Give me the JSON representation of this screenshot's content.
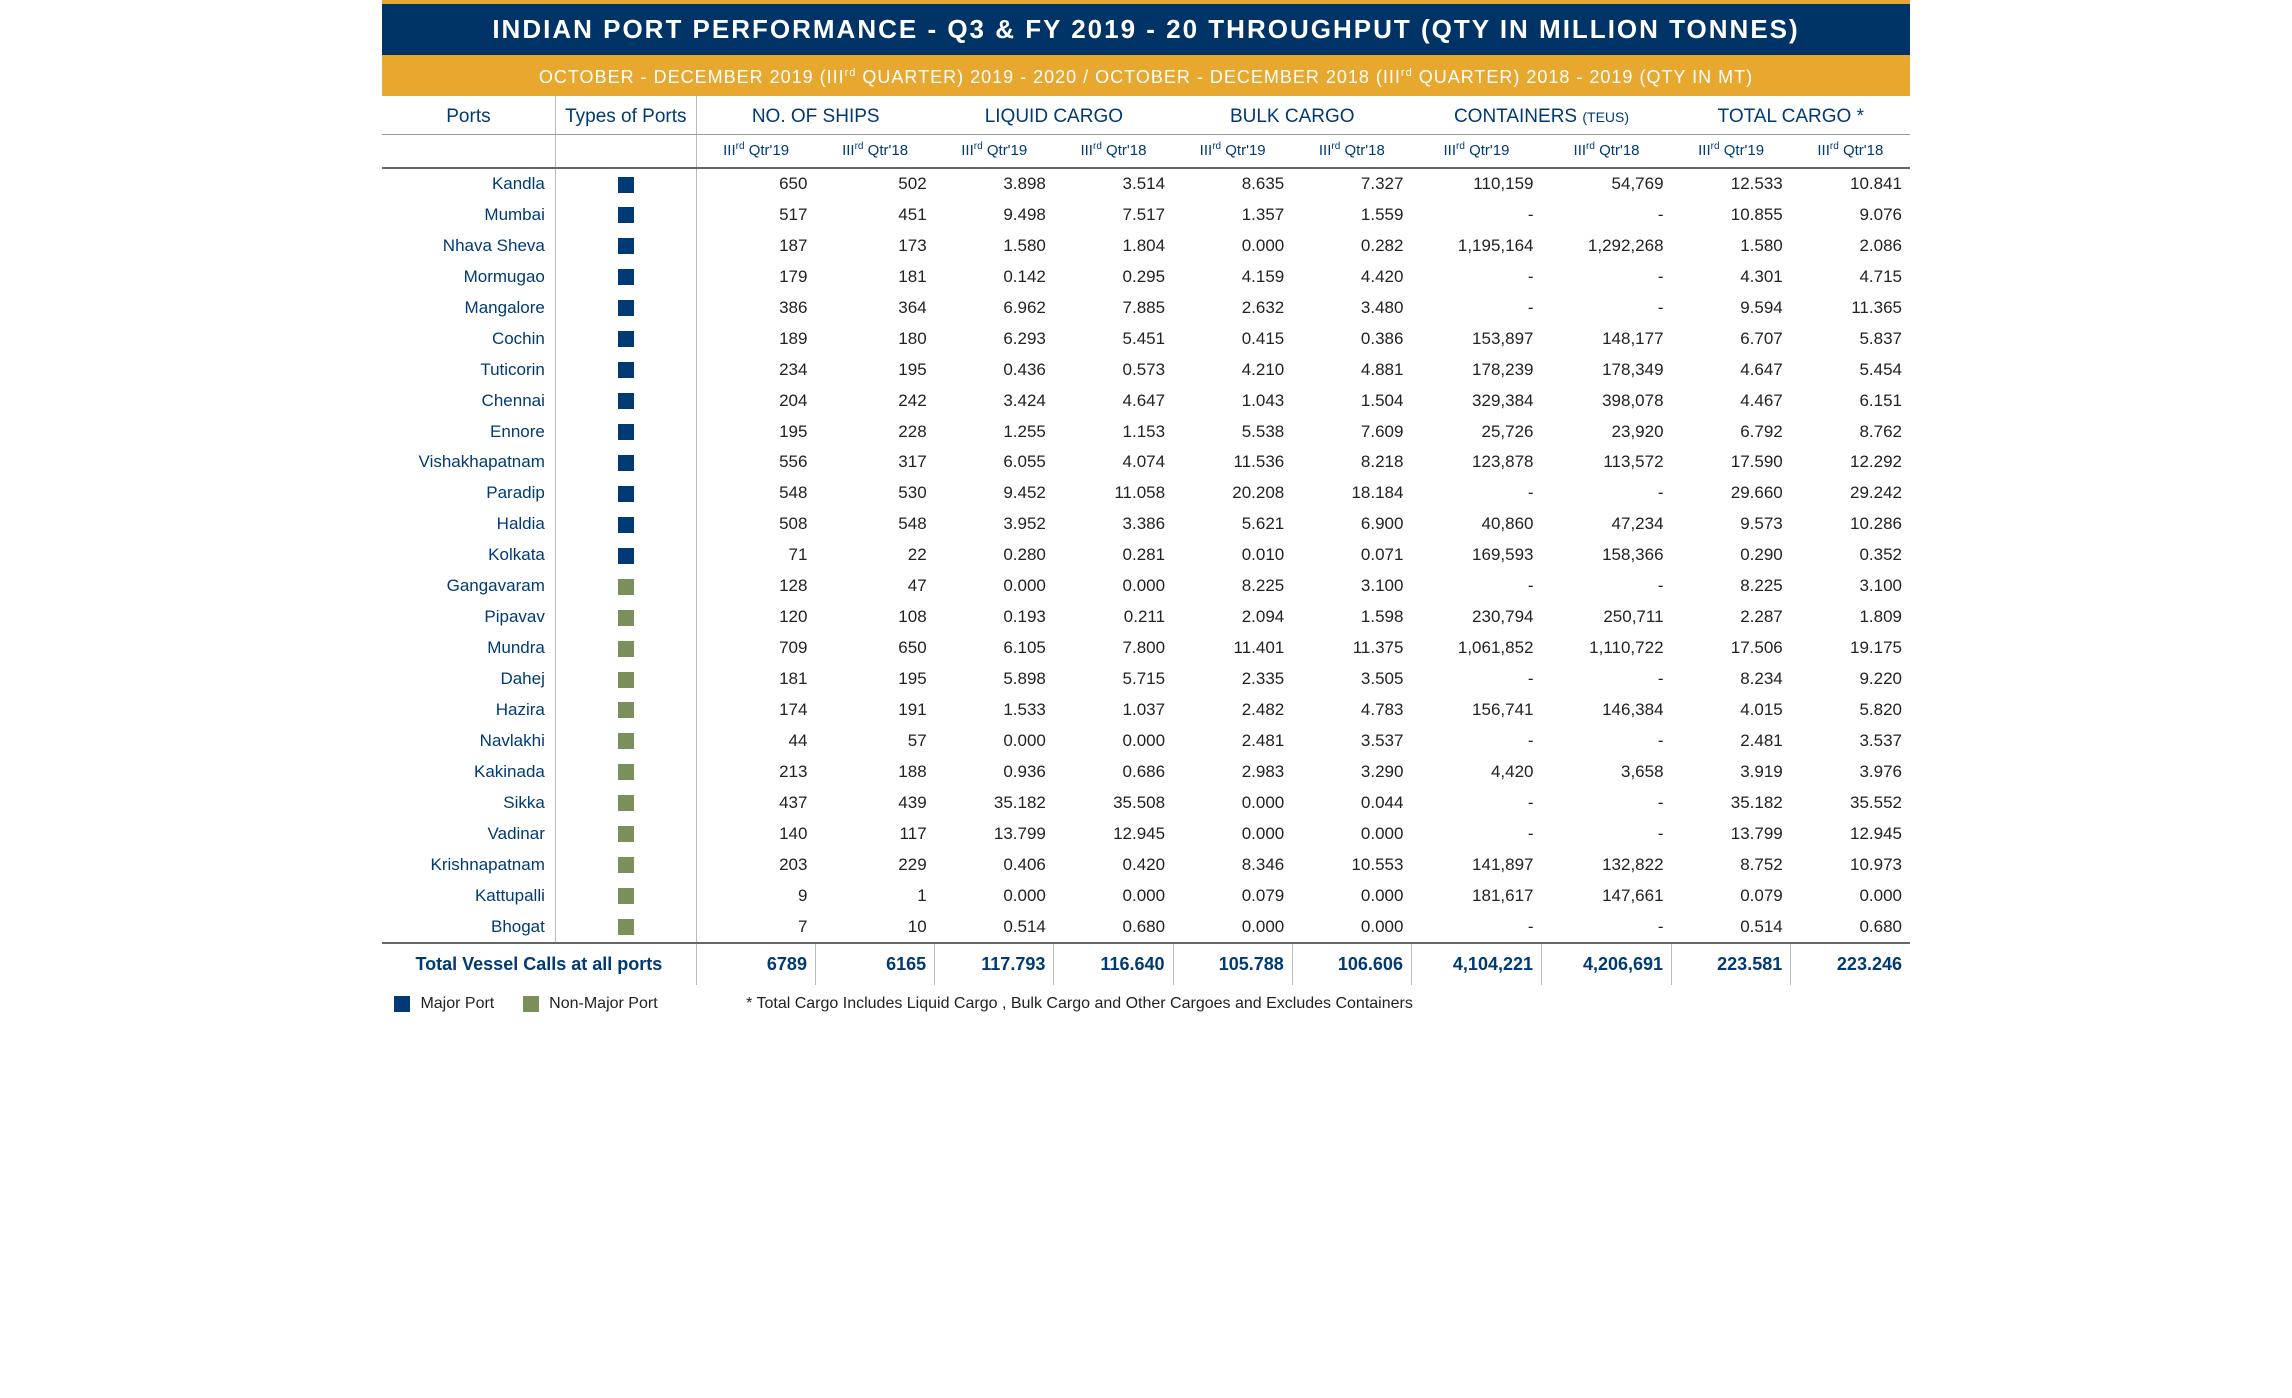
{
  "title": "INDIAN PORT PERFORMANCE - Q3 & FY 2019 - 20 THROUGHPUT (QTY IN MILLION TONNES)",
  "subtitle_html": "OCTOBER - DECEMBER 2019 (III<sup>rd</sup> QUARTER) 2019 - 2020 / OCTOBER - DECEMBER 2018 (III<sup>rd</sup> QUARTER) 2018 - 2019 (QTY IN MT)",
  "colors": {
    "header_bg": "#003366",
    "accent_bg": "#e8a830",
    "heading_text": "#003a75",
    "major_port": "#003a75",
    "nonmajor_port": "#7b8f5a"
  },
  "columns": {
    "ports": "Ports",
    "types": "Types of Ports",
    "groups": [
      {
        "label": "NO. OF SHIPS",
        "unit": ""
      },
      {
        "label": "LIQUID CARGO",
        "unit": ""
      },
      {
        "label": "BULK CARGO",
        "unit": ""
      },
      {
        "label_html": "CONTAINERS <span class='teus-small'>(TEUS)</span>",
        "unit": ""
      },
      {
        "label": "TOTAL CARGO *",
        "unit": ""
      }
    ],
    "period_label_19_html": "III<sup>rd</sup> Qtr'19",
    "period_label_18_html": "III<sup>rd</sup> Qtr'18"
  },
  "legend": {
    "major": "Major Port",
    "nonmajor": "Non-Major Port",
    "note": "* Total Cargo Includes Liquid Cargo , Bulk Cargo and Other Cargoes and Excludes Containers"
  },
  "rows": [
    {
      "port": "Kandla",
      "type": "major",
      "ships19": "650",
      "ships18": "502",
      "liq19": "3.898",
      "liq18": "3.514",
      "bulk19": "8.635",
      "bulk18": "7.327",
      "cont19": "110,159",
      "cont18": "54,769",
      "tot19": "12.533",
      "tot18": "10.841"
    },
    {
      "port": "Mumbai",
      "type": "major",
      "ships19": "517",
      "ships18": "451",
      "liq19": "9.498",
      "liq18": "7.517",
      "bulk19": "1.357",
      "bulk18": "1.559",
      "cont19": "-",
      "cont18": "-",
      "tot19": "10.855",
      "tot18": "9.076"
    },
    {
      "port": "Nhava Sheva",
      "type": "major",
      "ships19": "187",
      "ships18": "173",
      "liq19": "1.580",
      "liq18": "1.804",
      "bulk19": "0.000",
      "bulk18": "0.282",
      "cont19": "1,195,164",
      "cont18": "1,292,268",
      "tot19": "1.580",
      "tot18": "2.086"
    },
    {
      "port": "Mormugao",
      "type": "major",
      "ships19": "179",
      "ships18": "181",
      "liq19": "0.142",
      "liq18": "0.295",
      "bulk19": "4.159",
      "bulk18": "4.420",
      "cont19": "-",
      "cont18": "-",
      "tot19": "4.301",
      "tot18": "4.715"
    },
    {
      "port": "Mangalore",
      "type": "major",
      "ships19": "386",
      "ships18": "364",
      "liq19": "6.962",
      "liq18": "7.885",
      "bulk19": "2.632",
      "bulk18": "3.480",
      "cont19": "-",
      "cont18": "-",
      "tot19": "9.594",
      "tot18": "11.365"
    },
    {
      "port": "Cochin",
      "type": "major",
      "ships19": "189",
      "ships18": "180",
      "liq19": "6.293",
      "liq18": "5.451",
      "bulk19": "0.415",
      "bulk18": "0.386",
      "cont19": "153,897",
      "cont18": "148,177",
      "tot19": "6.707",
      "tot18": "5.837"
    },
    {
      "port": "Tuticorin",
      "type": "major",
      "ships19": "234",
      "ships18": "195",
      "liq19": "0.436",
      "liq18": "0.573",
      "bulk19": "4.210",
      "bulk18": "4.881",
      "cont19": "178,239",
      "cont18": "178,349",
      "tot19": "4.647",
      "tot18": "5.454"
    },
    {
      "port": "Chennai",
      "type": "major",
      "ships19": "204",
      "ships18": "242",
      "liq19": "3.424",
      "liq18": "4.647",
      "bulk19": "1.043",
      "bulk18": "1.504",
      "cont19": "329,384",
      "cont18": "398,078",
      "tot19": "4.467",
      "tot18": "6.151"
    },
    {
      "port": "Ennore",
      "type": "major",
      "ships19": "195",
      "ships18": "228",
      "liq19": "1.255",
      "liq18": "1.153",
      "bulk19": "5.538",
      "bulk18": "7.609",
      "cont19": "25,726",
      "cont18": "23,920",
      "tot19": "6.792",
      "tot18": "8.762"
    },
    {
      "port": "Vishakhapatnam",
      "type": "major",
      "ships19": "556",
      "ships18": "317",
      "liq19": "6.055",
      "liq18": "4.074",
      "bulk19": "11.536",
      "bulk18": "8.218",
      "cont19": "123,878",
      "cont18": "113,572",
      "tot19": "17.590",
      "tot18": "12.292"
    },
    {
      "port": "Paradip",
      "type": "major",
      "ships19": "548",
      "ships18": "530",
      "liq19": "9.452",
      "liq18": "11.058",
      "bulk19": "20.208",
      "bulk18": "18.184",
      "cont19": "-",
      "cont18": "-",
      "tot19": "29.660",
      "tot18": "29.242"
    },
    {
      "port": "Haldia",
      "type": "major",
      "ships19": "508",
      "ships18": "548",
      "liq19": "3.952",
      "liq18": "3.386",
      "bulk19": "5.621",
      "bulk18": "6.900",
      "cont19": "40,860",
      "cont18": "47,234",
      "tot19": "9.573",
      "tot18": "10.286"
    },
    {
      "port": "Kolkata",
      "type": "major",
      "ships19": "71",
      "ships18": "22",
      "liq19": "0.280",
      "liq18": "0.281",
      "bulk19": "0.010",
      "bulk18": "0.071",
      "cont19": "169,593",
      "cont18": "158,366",
      "tot19": "0.290",
      "tot18": "0.352"
    },
    {
      "port": "Gangavaram",
      "type": "nonmajor",
      "ships19": "128",
      "ships18": "47",
      "liq19": "0.000",
      "liq18": "0.000",
      "bulk19": "8.225",
      "bulk18": "3.100",
      "cont19": "-",
      "cont18": "-",
      "tot19": "8.225",
      "tot18": "3.100"
    },
    {
      "port": "Pipavav",
      "type": "nonmajor",
      "ships19": "120",
      "ships18": "108",
      "liq19": "0.193",
      "liq18": "0.211",
      "bulk19": "2.094",
      "bulk18": "1.598",
      "cont19": "230,794",
      "cont18": "250,711",
      "tot19": "2.287",
      "tot18": "1.809"
    },
    {
      "port": "Mundra",
      "type": "nonmajor",
      "ships19": "709",
      "ships18": "650",
      "liq19": "6.105",
      "liq18": "7.800",
      "bulk19": "11.401",
      "bulk18": "11.375",
      "cont19": "1,061,852",
      "cont18": "1,110,722",
      "tot19": "17.506",
      "tot18": "19.175"
    },
    {
      "port": "Dahej",
      "type": "nonmajor",
      "ships19": "181",
      "ships18": "195",
      "liq19": "5.898",
      "liq18": "5.715",
      "bulk19": "2.335",
      "bulk18": "3.505",
      "cont19": "-",
      "cont18": "-",
      "tot19": "8.234",
      "tot18": "9.220"
    },
    {
      "port": "Hazira",
      "type": "nonmajor",
      "ships19": "174",
      "ships18": "191",
      "liq19": "1.533",
      "liq18": "1.037",
      "bulk19": "2.482",
      "bulk18": "4.783",
      "cont19": "156,741",
      "cont18": "146,384",
      "tot19": "4.015",
      "tot18": "5.820"
    },
    {
      "port": "Navlakhi",
      "type": "nonmajor",
      "ships19": "44",
      "ships18": "57",
      "liq19": "0.000",
      "liq18": "0.000",
      "bulk19": "2.481",
      "bulk18": "3.537",
      "cont19": "-",
      "cont18": "-",
      "tot19": "2.481",
      "tot18": "3.537"
    },
    {
      "port": "Kakinada",
      "type": "nonmajor",
      "ships19": "213",
      "ships18": "188",
      "liq19": "0.936",
      "liq18": "0.686",
      "bulk19": "2.983",
      "bulk18": "3.290",
      "cont19": "4,420",
      "cont18": "3,658",
      "tot19": "3.919",
      "tot18": "3.976"
    },
    {
      "port": "Sikka",
      "type": "nonmajor",
      "ships19": "437",
      "ships18": "439",
      "liq19": "35.182",
      "liq18": "35.508",
      "bulk19": "0.000",
      "bulk18": "0.044",
      "cont19": "-",
      "cont18": "-",
      "tot19": "35.182",
      "tot18": "35.552"
    },
    {
      "port": "Vadinar",
      "type": "nonmajor",
      "ships19": "140",
      "ships18": "117",
      "liq19": "13.799",
      "liq18": "12.945",
      "bulk19": "0.000",
      "bulk18": "0.000",
      "cont19": "-",
      "cont18": "-",
      "tot19": "13.799",
      "tot18": "12.945"
    },
    {
      "port": "Krishnapatnam",
      "type": "nonmajor",
      "ships19": "203",
      "ships18": "229",
      "liq19": "0.406",
      "liq18": "0.420",
      "bulk19": "8.346",
      "bulk18": "10.553",
      "cont19": "141,897",
      "cont18": "132,822",
      "tot19": "8.752",
      "tot18": "10.973"
    },
    {
      "port": "Kattupalli",
      "type": "nonmajor",
      "ships19": "9",
      "ships18": "1",
      "liq19": "0.000",
      "liq18": "0.000",
      "bulk19": "0.079",
      "bulk18": "0.000",
      "cont19": "181,617",
      "cont18": "147,661",
      "tot19": "0.079",
      "tot18": "0.000"
    },
    {
      "port": "Bhogat",
      "type": "nonmajor",
      "ships19": "7",
      "ships18": "10",
      "liq19": "0.514",
      "liq18": "0.680",
      "bulk19": "0.000",
      "bulk18": "0.000",
      "cont19": "-",
      "cont18": "-",
      "tot19": "0.514",
      "tot18": "0.680"
    }
  ],
  "totals": {
    "label": "Total Vessel Calls at all ports",
    "ships19": "6789",
    "ships18": "6165",
    "liq19": "117.793",
    "liq18": "116.640",
    "bulk19": "105.788",
    "bulk18": "106.606",
    "cont19": "4,104,221",
    "cont18": "4,206,691",
    "tot19": "223.581",
    "tot18": "223.246"
  }
}
